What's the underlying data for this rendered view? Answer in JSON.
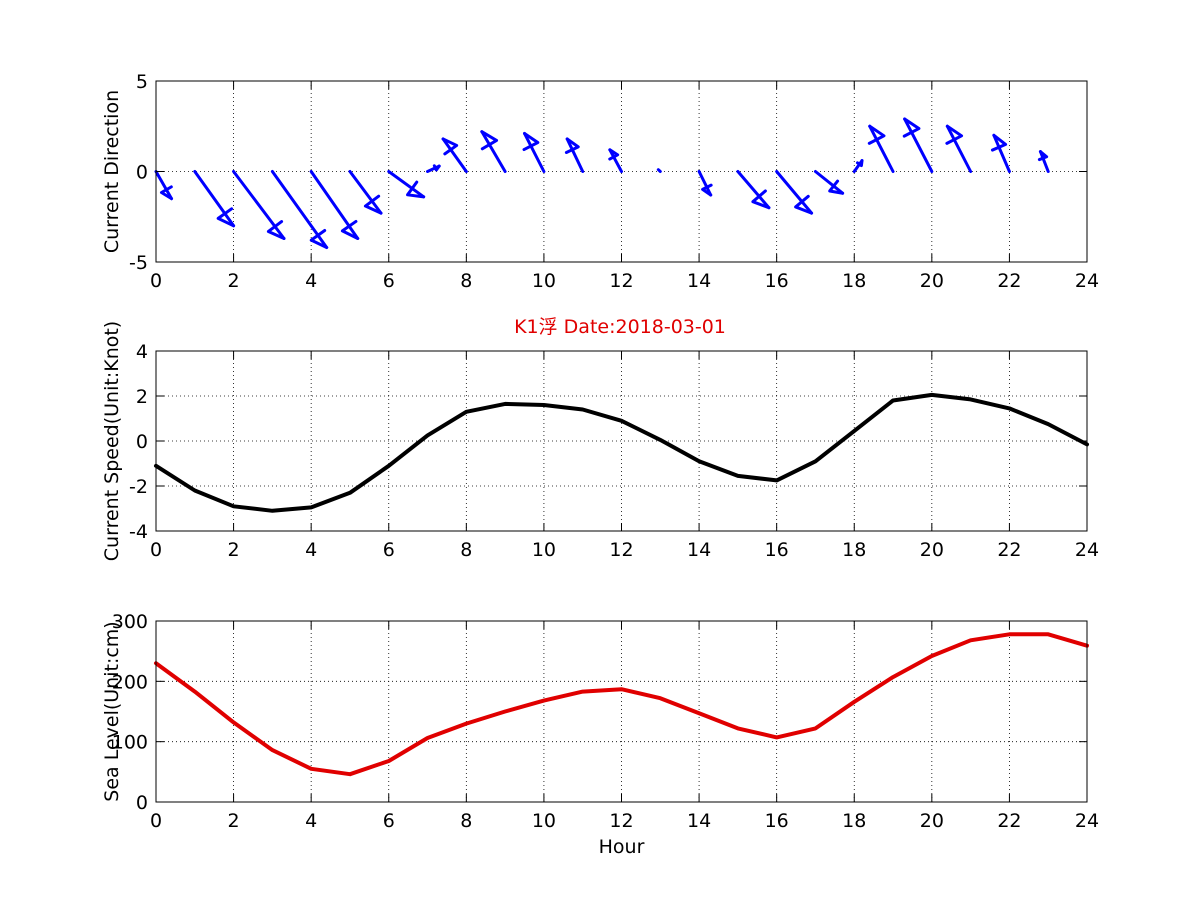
{
  "figure": {
    "title": "K1浮    Date:2018-03-01",
    "title_color": "#e00000",
    "background": "#ffffff"
  },
  "chart_data": [
    {
      "type": "quiver",
      "ylabel": "Current Direction",
      "xlabel": "",
      "xlim": [
        0,
        24
      ],
      "ylim": [
        -5,
        5
      ],
      "xticks": [
        0,
        2,
        4,
        6,
        8,
        10,
        12,
        14,
        16,
        18,
        20,
        22,
        24
      ],
      "yticks": [
        -5,
        0,
        5
      ],
      "grid": true,
      "color": "#0000ff",
      "series": [
        {
          "x": [
            0,
            1,
            2,
            3,
            4,
            5,
            6,
            7,
            8,
            9,
            10,
            11,
            12,
            13,
            14,
            15,
            16,
            17,
            18,
            19,
            20,
            21,
            22,
            23
          ],
          "u": [
            0.4,
            1.0,
            1.3,
            1.4,
            1.2,
            0.8,
            0.9,
            0.3,
            -0.6,
            -0.6,
            -0.5,
            -0.4,
            -0.3,
            -0.05,
            0.3,
            0.8,
            0.9,
            0.7,
            0.2,
            -0.6,
            -0.7,
            -0.6,
            -0.4,
            -0.2
          ],
          "v": [
            -1.5,
            -3.0,
            -3.7,
            -4.2,
            -3.7,
            -2.3,
            -1.4,
            0.3,
            1.8,
            2.2,
            2.1,
            1.8,
            1.2,
            0.1,
            -1.3,
            -2.0,
            -2.3,
            -1.2,
            0.6,
            2.5,
            2.9,
            2.5,
            2.0,
            1.1
          ]
        }
      ]
    },
    {
      "type": "line",
      "ylabel": "Current Speed(Unit:Knot)",
      "xlabel": "",
      "xlim": [
        0,
        24
      ],
      "ylim": [
        -4,
        4
      ],
      "xticks": [
        0,
        2,
        4,
        6,
        8,
        10,
        12,
        14,
        16,
        18,
        20,
        22,
        24
      ],
      "yticks": [
        -4,
        -2,
        0,
        2,
        4
      ],
      "grid": true,
      "series": [
        {
          "color": "#000000",
          "x": [
            0,
            1,
            2,
            3,
            4,
            5,
            6,
            7,
            8,
            9,
            10,
            11,
            12,
            13,
            14,
            15,
            16,
            17,
            18,
            19,
            20,
            21,
            22,
            23,
            24
          ],
          "y": [
            -1.1,
            -2.2,
            -2.9,
            -3.1,
            -2.95,
            -2.3,
            -1.1,
            0.25,
            1.3,
            1.65,
            1.6,
            1.4,
            0.9,
            0.05,
            -0.9,
            -1.55,
            -1.75,
            -0.9,
            0.45,
            1.8,
            2.05,
            1.85,
            1.45,
            0.75,
            -0.15
          ]
        }
      ]
    },
    {
      "type": "line",
      "ylabel": "Sea Level(Unit:cm)",
      "xlabel": "Hour",
      "xlim": [
        0,
        24
      ],
      "ylim": [
        0,
        300
      ],
      "xticks": [
        0,
        2,
        4,
        6,
        8,
        10,
        12,
        14,
        16,
        18,
        20,
        22,
        24
      ],
      "yticks": [
        0,
        100,
        200,
        300
      ],
      "grid": true,
      "series": [
        {
          "color": "#e00000",
          "x": [
            0,
            1,
            2,
            3,
            4,
            5,
            6,
            7,
            8,
            9,
            10,
            11,
            12,
            13,
            14,
            15,
            16,
            17,
            18,
            19,
            20,
            21,
            22,
            23,
            24
          ],
          "y": [
            230,
            183,
            132,
            86,
            55,
            46,
            68,
            106,
            130,
            150,
            168,
            183,
            187,
            172,
            147,
            122,
            107,
            122,
            166,
            207,
            242,
            268,
            278,
            278,
            259
          ]
        }
      ]
    }
  ]
}
